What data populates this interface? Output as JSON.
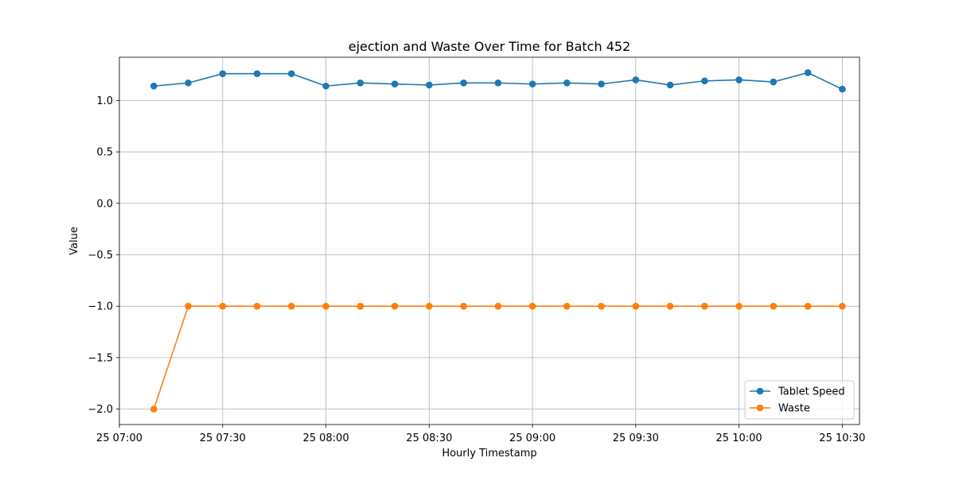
{
  "chart_data": {
    "type": "line",
    "title": "ejection and Waste Over Time for Batch 452",
    "xlabel": "Hourly Timestamp",
    "ylabel": "Value",
    "x": [
      "07:10",
      "07:20",
      "07:30",
      "07:40",
      "07:50",
      "08:00",
      "08:10",
      "08:20",
      "08:30",
      "08:40",
      "08:50",
      "09:00",
      "09:10",
      "09:20",
      "09:30",
      "09:40",
      "09:50",
      "10:00",
      "10:10",
      "10:20",
      "10:30"
    ],
    "x_range": [
      "07:00",
      "10:35"
    ],
    "ylim": [
      -2.15,
      1.42
    ],
    "xticks": [
      {
        "label": "25 07:00",
        "value": "07:00"
      },
      {
        "label": "25 07:30",
        "value": "07:30"
      },
      {
        "label": "25 08:00",
        "value": "08:00"
      },
      {
        "label": "25 08:30",
        "value": "08:30"
      },
      {
        "label": "25 09:00",
        "value": "09:00"
      },
      {
        "label": "25 09:30",
        "value": "09:30"
      },
      {
        "label": "25 10:00",
        "value": "10:00"
      },
      {
        "label": "25 10:30",
        "value": "10:30"
      }
    ],
    "yticks": [
      {
        "label": "1.0",
        "value": 1.0
      },
      {
        "label": "0.5",
        "value": 0.5
      },
      {
        "label": "0.0",
        "value": 0.0
      },
      {
        "label": "−0.5",
        "value": -0.5
      },
      {
        "label": "−1.0",
        "value": -1.0
      },
      {
        "label": "−1.5",
        "value": -1.5
      },
      {
        "label": "−2.0",
        "value": -2.0
      }
    ],
    "grid": true,
    "legend_position": "lower-right",
    "series": [
      {
        "name": "Tablet Speed",
        "color": "#1f77b4",
        "values": [
          1.14,
          1.17,
          1.26,
          1.26,
          1.26,
          1.14,
          1.17,
          1.16,
          1.15,
          1.17,
          1.17,
          1.16,
          1.17,
          1.16,
          1.2,
          1.15,
          1.19,
          1.2,
          1.18,
          1.27,
          1.11
        ]
      },
      {
        "name": "Waste",
        "color": "#ff7f0e",
        "values": [
          -2.0,
          -1.0,
          -1.0,
          -1.0,
          -1.0,
          -1.0,
          -1.0,
          -1.0,
          -1.0,
          -1.0,
          -1.0,
          -1.0,
          -1.0,
          -1.0,
          -1.0,
          -1.0,
          -1.0,
          -1.0,
          -1.0,
          -1.0,
          -1.0
        ]
      }
    ]
  }
}
